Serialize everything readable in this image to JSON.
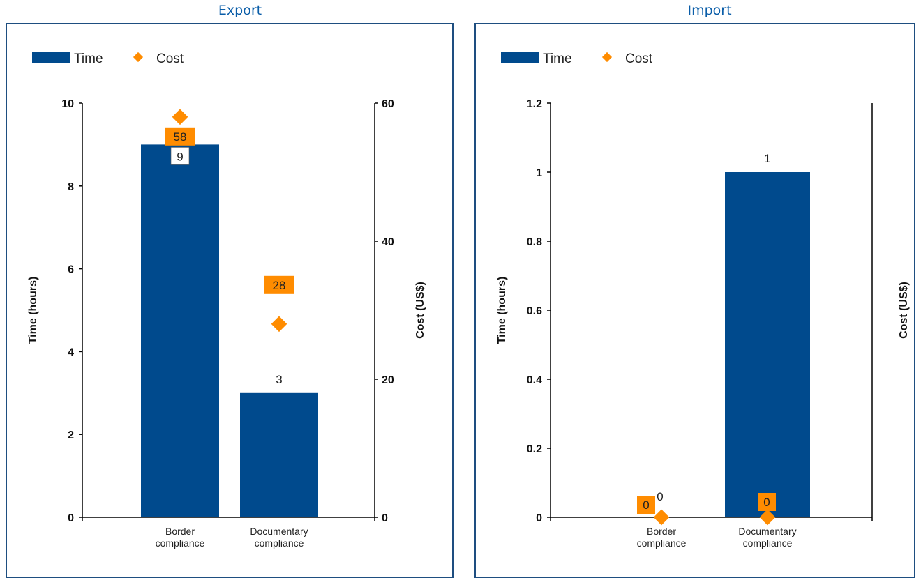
{
  "colors": {
    "bar": "#004a8d",
    "cost": "#ff8c00",
    "frame": "#1e4e80",
    "title": "#0a5da8"
  },
  "chart_data": [
    {
      "type": "bar",
      "title": "Export",
      "categories": [
        "Border compliance",
        "Documentary compliance"
      ],
      "category_lines": [
        [
          "Border",
          "compliance"
        ],
        [
          "Documentary",
          "compliance"
        ]
      ],
      "legend": {
        "time": "Time",
        "cost": "Cost",
        "position": "top-left"
      },
      "series": [
        {
          "name": "Time",
          "kind": "bar",
          "axis": "left",
          "values": [
            9,
            3
          ],
          "labels": [
            "9",
            "3"
          ]
        },
        {
          "name": "Cost",
          "kind": "marker",
          "axis": "right",
          "values": [
            58,
            28
          ],
          "labels": [
            "58",
            "28"
          ]
        }
      ],
      "ylabel": "Time (hours)",
      "y2label": "Cost (US$)",
      "ylim": [
        0,
        10
      ],
      "yticks": [
        "0",
        "2",
        "4",
        "6",
        "8",
        "10"
      ],
      "y2lim": [
        0,
        60
      ],
      "y2ticks": [
        "0",
        "20",
        "40",
        "60"
      ],
      "grid": false
    },
    {
      "type": "bar",
      "title": "Import",
      "categories": [
        "Border compliance",
        "Documentary compliance"
      ],
      "category_lines": [
        [
          "Border",
          "compliance"
        ],
        [
          "Documentary",
          "compliance"
        ]
      ],
      "legend": {
        "time": "Time",
        "cost": "Cost",
        "position": "top-left"
      },
      "series": [
        {
          "name": "Time",
          "kind": "bar",
          "axis": "left",
          "values": [
            0,
            1
          ],
          "labels": [
            "0",
            "1"
          ]
        },
        {
          "name": "Cost",
          "kind": "marker",
          "axis": "right",
          "values": [
            0,
            0
          ],
          "labels": [
            "0",
            "0"
          ]
        }
      ],
      "ylabel": "Time (hours)",
      "y2label": "Cost (US$)",
      "ylim": [
        0,
        1.2
      ],
      "yticks": [
        "0",
        "0.2",
        "0.4",
        "0.6",
        "0.8",
        "1",
        "1.2"
      ],
      "y2lim": [
        0,
        1
      ],
      "y2ticks": [],
      "grid": false
    }
  ]
}
